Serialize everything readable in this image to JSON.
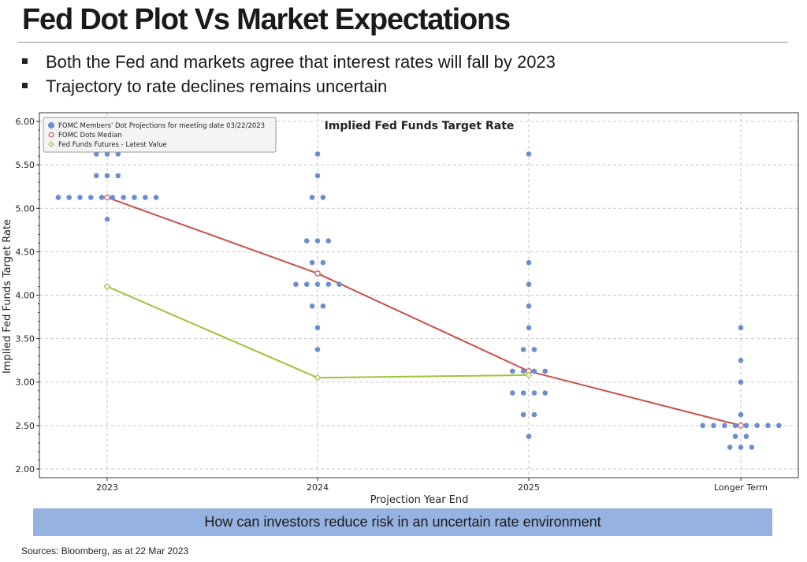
{
  "slide": {
    "title": "Fed Dot Plot Vs Market Expectations",
    "bullets": [
      "Both the Fed and markets agree that interest rates will fall by 2023",
      "Trajectory to rate declines remains uncertain"
    ],
    "banner": "How can investors reduce risk in an uncertain rate environment",
    "sources": "Sources: Bloomberg, as at 22 Mar 2023"
  },
  "chart_data": {
    "type": "scatter",
    "title": "Implied Fed Funds Target Rate",
    "xlabel": "Projection Year End",
    "ylabel": "Implied Fed Funds Target Rate",
    "categories": [
      "2023",
      "2024",
      "2025",
      "Longer Term"
    ],
    "ylim": [
      1.9,
      6.1
    ],
    "yticks": [
      "2.00",
      "2.50",
      "3.00",
      "3.50",
      "4.00",
      "4.50",
      "5.00",
      "5.50",
      "6.00"
    ],
    "grid": true,
    "legend_position": "top-left",
    "series": [
      {
        "name": "FOMC Members' Dot Projections for meeting date 03/22/2023",
        "kind": "dots",
        "color": "#6b8ed1",
        "dots": [
          {
            "x": "2023",
            "y": 5.625,
            "count": 3
          },
          {
            "x": "2023",
            "y": 5.375,
            "count": 3
          },
          {
            "x": "2023",
            "y": 5.125,
            "count": 10
          },
          {
            "x": "2023",
            "y": 4.875,
            "count": 1
          },
          {
            "x": "2024",
            "y": 5.625,
            "count": 1
          },
          {
            "x": "2024",
            "y": 5.375,
            "count": 1
          },
          {
            "x": "2024",
            "y": 5.125,
            "count": 2
          },
          {
            "x": "2024",
            "y": 4.625,
            "count": 3
          },
          {
            "x": "2024",
            "y": 4.375,
            "count": 2
          },
          {
            "x": "2024",
            "y": 4.125,
            "count": 5
          },
          {
            "x": "2024",
            "y": 3.875,
            "count": 2
          },
          {
            "x": "2024",
            "y": 3.625,
            "count": 1
          },
          {
            "x": "2024",
            "y": 3.375,
            "count": 1
          },
          {
            "x": "2025",
            "y": 5.625,
            "count": 1
          },
          {
            "x": "2025",
            "y": 4.375,
            "count": 1
          },
          {
            "x": "2025",
            "y": 4.125,
            "count": 1
          },
          {
            "x": "2025",
            "y": 3.875,
            "count": 1
          },
          {
            "x": "2025",
            "y": 3.625,
            "count": 1
          },
          {
            "x": "2025",
            "y": 3.375,
            "count": 2
          },
          {
            "x": "2025",
            "y": 3.125,
            "count": 4
          },
          {
            "x": "2025",
            "y": 2.875,
            "count": 4
          },
          {
            "x": "2025",
            "y": 2.625,
            "count": 2
          },
          {
            "x": "2025",
            "y": 2.375,
            "count": 1
          },
          {
            "x": "Longer Term",
            "y": 3.625,
            "count": 1
          },
          {
            "x": "Longer Term",
            "y": 3.25,
            "count": 1
          },
          {
            "x": "Longer Term",
            "y": 3.0,
            "count": 1
          },
          {
            "x": "Longer Term",
            "y": 2.625,
            "count": 1
          },
          {
            "x": "Longer Term",
            "y": 2.5,
            "count": 8
          },
          {
            "x": "Longer Term",
            "y": 2.375,
            "count": 2
          },
          {
            "x": "Longer Term",
            "y": 2.25,
            "count": 3
          }
        ]
      },
      {
        "name": "FOMC Dots Median",
        "kind": "line",
        "color": "#c8504a",
        "x": [
          "2023",
          "2024",
          "2025",
          "Longer Term"
        ],
        "values": [
          5.125,
          4.25,
          3.125,
          2.5
        ]
      },
      {
        "name": "Fed Funds Futures - Latest Value",
        "kind": "line",
        "color": "#9cc43c",
        "x": [
          "2023",
          "2024",
          "2025"
        ],
        "values": [
          4.1,
          3.05,
          3.08
        ]
      }
    ]
  }
}
